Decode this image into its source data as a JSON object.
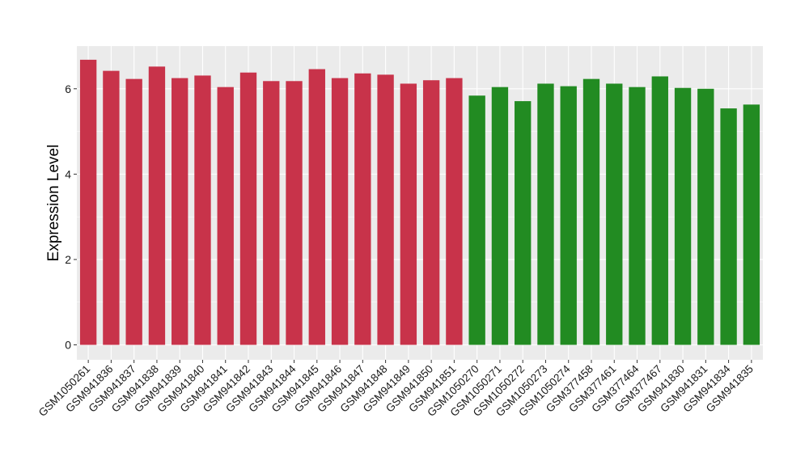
{
  "chart_data": {
    "type": "bar",
    "ylabel": "Expression Level",
    "ylim": [
      -0.35,
      7.0
    ],
    "yticks": [
      0,
      2,
      4,
      6
    ],
    "grid": true,
    "colors": {
      "group_a": "#c8334a",
      "group_b": "#228b22",
      "panel_bg": "#ebebeb",
      "grid": "#ffffff"
    },
    "categories": [
      "GSM1050261",
      "GSM941836",
      "GSM941837",
      "GSM941838",
      "GSM941839",
      "GSM941840",
      "GSM941841",
      "GSM941842",
      "GSM941843",
      "GSM941844",
      "GSM941845",
      "GSM941846",
      "GSM941847",
      "GSM941848",
      "GSM941849",
      "GSM941850",
      "GSM941851",
      "GSM1050270",
      "GSM1050271",
      "GSM1050272",
      "GSM1050273",
      "GSM1050274",
      "GSM377458",
      "GSM377461",
      "GSM377464",
      "GSM377467",
      "GSM941830",
      "GSM941831",
      "GSM941834",
      "GSM941835"
    ],
    "values": [
      6.68,
      6.42,
      6.23,
      6.52,
      6.25,
      6.31,
      6.04,
      6.38,
      6.18,
      6.18,
      6.46,
      6.25,
      6.36,
      6.33,
      6.12,
      6.2,
      6.25,
      5.84,
      6.04,
      5.71,
      6.12,
      6.06,
      6.23,
      6.12,
      6.04,
      6.29,
      6.02,
      6.0,
      5.54,
      5.63
    ],
    "groups": [
      "a",
      "a",
      "a",
      "a",
      "a",
      "a",
      "a",
      "a",
      "a",
      "a",
      "a",
      "a",
      "a",
      "a",
      "a",
      "a",
      "a",
      "b",
      "b",
      "b",
      "b",
      "b",
      "b",
      "b",
      "b",
      "b",
      "b",
      "b",
      "b",
      "b"
    ]
  }
}
